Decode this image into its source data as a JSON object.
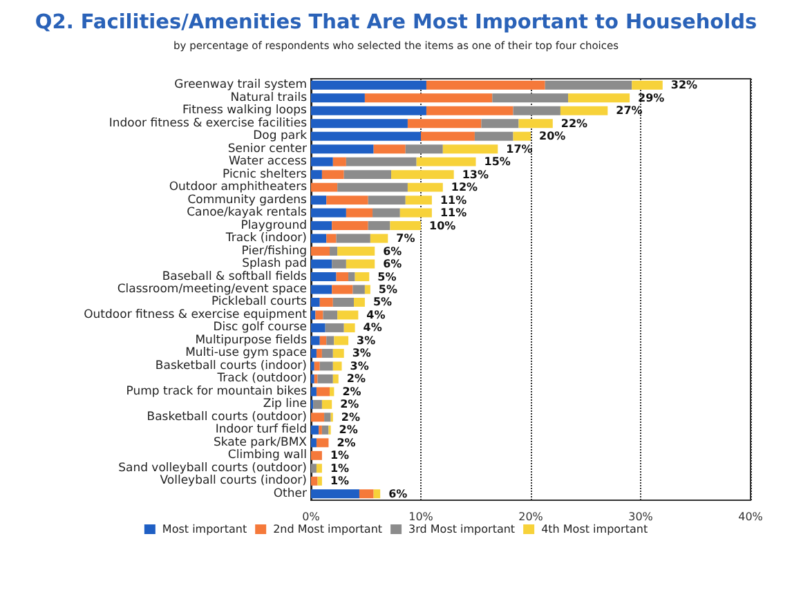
{
  "chart_data": {
    "type": "bar",
    "orientation": "horizontal",
    "stacked": true,
    "title": "Q2. Facilities/Amenities That Are Most Important to Households",
    "subtitle": "by percentage of respondents who selected the items as one of their top four choices",
    "categories": [
      "Greenway trail system",
      "Natural trails",
      "Fitness walking loops",
      "Indoor fitness & exercise facilities",
      "Dog park",
      "Senior center",
      "Water access",
      "Picnic shelters",
      "Outdoor amphitheaters",
      "Community gardens",
      "Canoe/kayak rentals",
      "Playground",
      "Track (indoor)",
      "Pier/fishing",
      "Splash pad",
      "Baseball & softball fields",
      "Classroom/meeting/event space",
      "Pickleball courts",
      "Outdoor fitness & exercise equipment",
      "Disc golf course",
      "Multipurpose fields",
      "Multi-use gym space",
      "Basketball courts (indoor)",
      "Track (outdoor)",
      "Pump track for mountain bikes",
      "Zip line",
      "Basketball courts (outdoor)",
      "Indoor turf field",
      "Skate park/BMX",
      "Climbing wall",
      "Sand volleyball courts (outdoor)",
      "Volleyball courts (indoor)",
      "Other"
    ],
    "series": [
      {
        "name": "Most important",
        "color": "#1f5fc4",
        "values": [
          10.5,
          4.9,
          10.5,
          8.8,
          10,
          5.7,
          2,
          1,
          0,
          1.4,
          3.2,
          1.9,
          1.4,
          0,
          1.9,
          2.3,
          1.9,
          0.8,
          0.4,
          1.3,
          0.8,
          0.5,
          0.3,
          0.3,
          0.5,
          0.2,
          0,
          0.7,
          0.5,
          0,
          0,
          0,
          4.4
        ]
      },
      {
        "name": "2nd Most important",
        "color": "#f5793a",
        "values": [
          10.8,
          11.6,
          7.9,
          6.7,
          4.9,
          2.9,
          1.2,
          2,
          2.4,
          3.8,
          2.4,
          3.3,
          0.9,
          1.7,
          0,
          1.1,
          1.9,
          1.2,
          0.7,
          0,
          0.6,
          0.5,
          0.5,
          0.3,
          1.2,
          0,
          1.2,
          0.3,
          1.1,
          1,
          0,
          0.6,
          1.3
        ]
      },
      {
        "name": "3rd Most important",
        "color": "#8c8c8c",
        "values": [
          7.9,
          6.9,
          4.3,
          3.4,
          3.5,
          3.4,
          6.4,
          4.3,
          6.4,
          3.4,
          2.5,
          2,
          3.1,
          0.7,
          1.3,
          0.6,
          1.1,
          1.9,
          1.3,
          1.7,
          0.7,
          1,
          1.2,
          1.4,
          0,
          0.8,
          0.6,
          0.6,
          0,
          0,
          0.5,
          0,
          0
        ]
      },
      {
        "name": "4th Most important",
        "color": "#f7d23a",
        "values": [
          2.8,
          5.6,
          4.3,
          3.1,
          1.6,
          5,
          5.4,
          5.7,
          3.2,
          2.4,
          2.9,
          2.8,
          1.6,
          3.4,
          2.6,
          1.3,
          0.5,
          1,
          1.9,
          1,
          1.3,
          1,
          0.8,
          0.5,
          0.4,
          0.9,
          0.2,
          0.2,
          0,
          0,
          0.5,
          0.4,
          0.6
        ]
      }
    ],
    "totals": [
      "32%",
      "29%",
      "27%",
      "22%",
      "20%",
      "17%",
      "15%",
      "13%",
      "12%",
      "11%",
      "11%",
      "10%",
      "7%",
      "6%",
      "6%",
      "5%",
      "5%",
      "5%",
      "4%",
      "4%",
      "3%",
      "3%",
      "3%",
      "2%",
      "2%",
      "2%",
      "2%",
      "2%",
      "2%",
      "1%",
      "1%",
      "1%",
      "6%"
    ],
    "xlim": [
      0,
      40
    ],
    "xticks": [
      {
        "value": 0,
        "label": "0%"
      },
      {
        "value": 10,
        "label": "10%"
      },
      {
        "value": 20,
        "label": "20%"
      },
      {
        "value": 30,
        "label": "30%"
      },
      {
        "value": 40,
        "label": "40%"
      }
    ],
    "grid": "x",
    "legend": "bottom"
  }
}
